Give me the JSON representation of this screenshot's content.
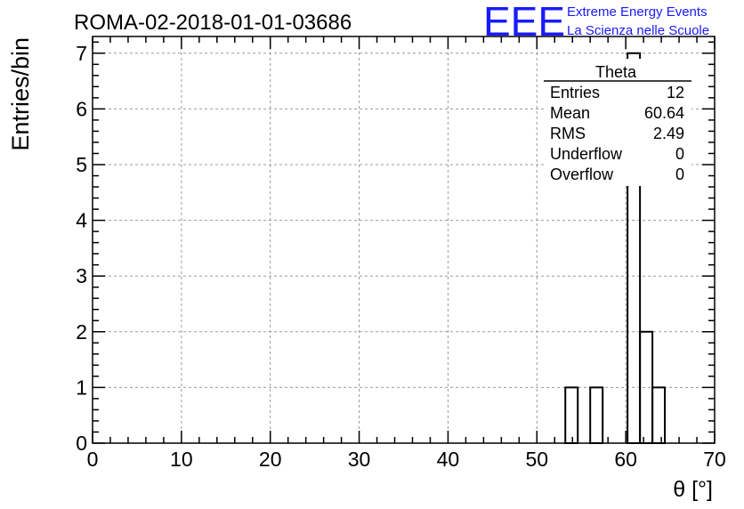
{
  "chart_data": {
    "type": "bar",
    "title": "ROMA-02-2018-01-01-03686",
    "xlabel": "θ [°]",
    "ylabel": "Entries/bin",
    "xlim": [
      0,
      70
    ],
    "ylim": [
      0,
      7.3
    ],
    "x_ticks": [
      "0",
      "10",
      "20",
      "30",
      "40",
      "50",
      "60",
      "70"
    ],
    "y_ticks": [
      "0",
      "1",
      "2",
      "3",
      "4",
      "5",
      "6",
      "7"
    ],
    "grid": true,
    "bin_width": 1.4,
    "bins": [
      {
        "x0": 53.2,
        "x1": 54.6,
        "value": 1
      },
      {
        "x0": 56.0,
        "x1": 57.4,
        "value": 1
      },
      {
        "x0": 60.2,
        "x1": 61.6,
        "value": 7
      },
      {
        "x0": 61.6,
        "x1": 63.0,
        "value": 2
      },
      {
        "x0": 63.0,
        "x1": 64.4,
        "value": 1
      }
    ],
    "stats_box": {
      "title": "Theta",
      "rows": [
        {
          "label": "Entries",
          "value": "12"
        },
        {
          "label": "Mean",
          "value": "60.64"
        },
        {
          "label": "RMS",
          "value": "2.49"
        },
        {
          "label": "Underflow",
          "value": "0"
        },
        {
          "label": "Overflow",
          "value": "0"
        }
      ]
    }
  },
  "logo": {
    "mark": "EEE",
    "line1": "Extreme Energy Events",
    "line2": "La Scienza nelle Scuole",
    "color": "#1a1aff"
  }
}
